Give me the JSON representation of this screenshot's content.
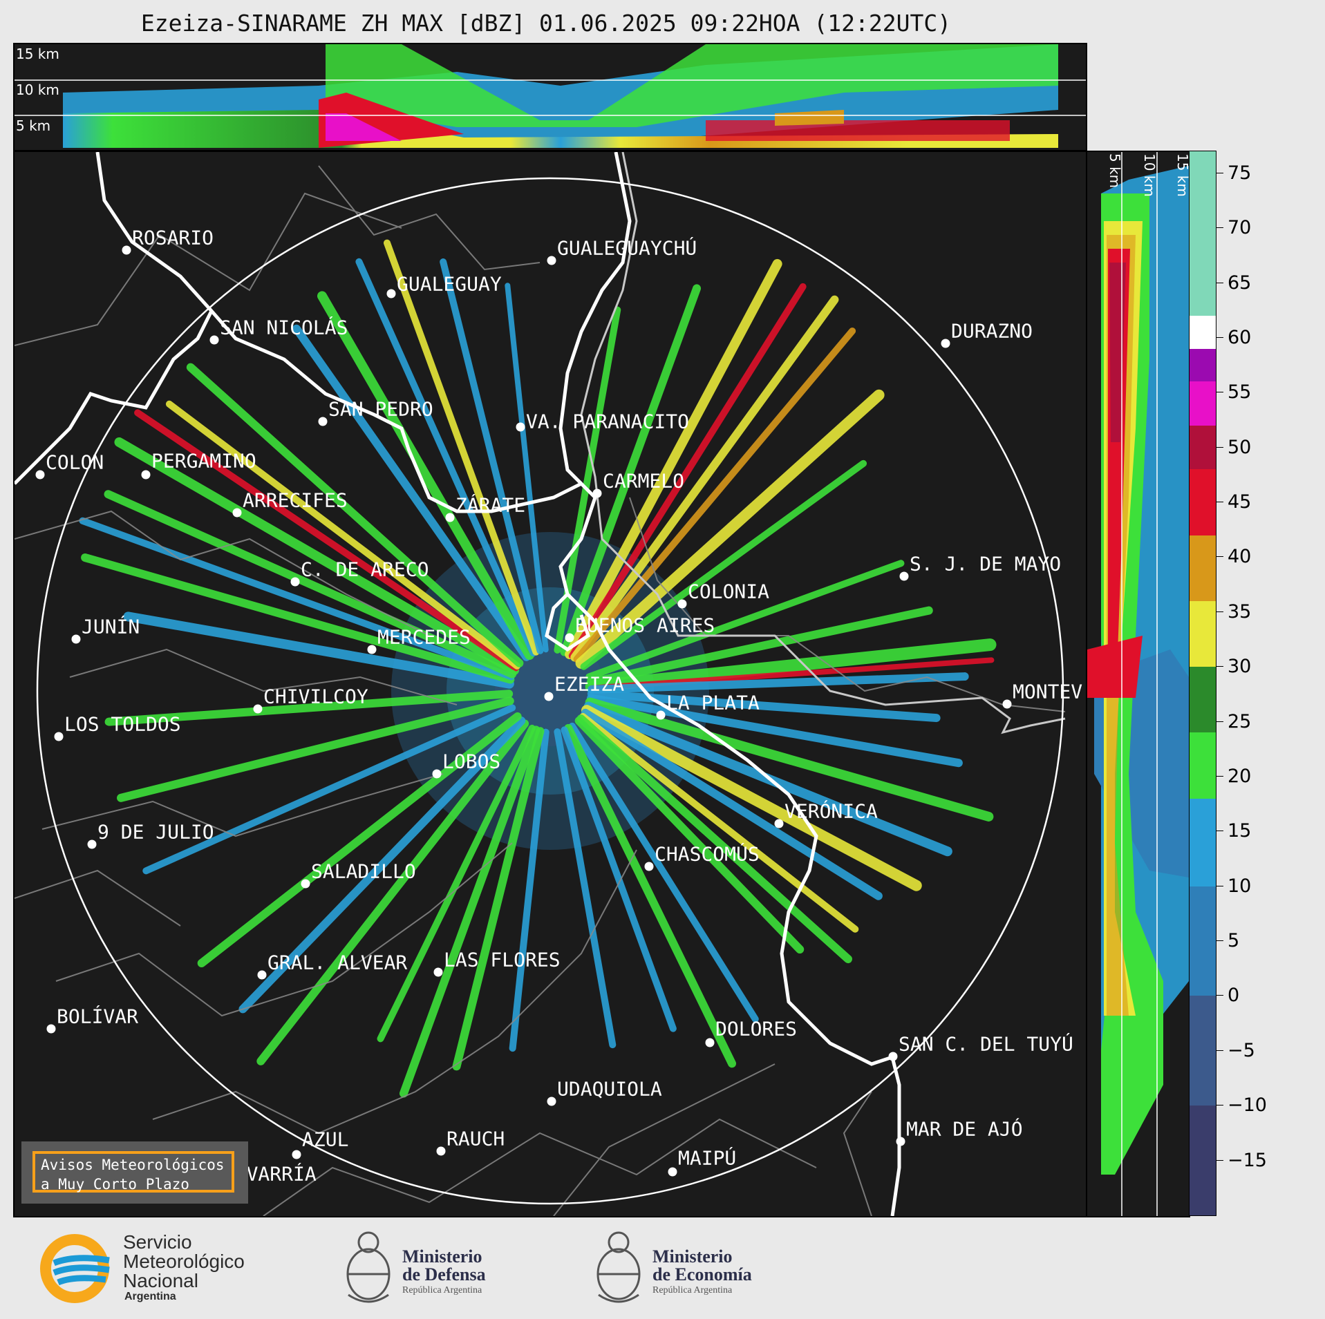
{
  "title": "Ezeiza-SINARAME ZH MAX [dBZ] 01.06.2025 09:22HOA (12:22UTC)",
  "top_panel": {
    "altitude_labels": [
      "15 km",
      "10 km",
      "5 km"
    ]
  },
  "side_panel": {
    "altitude_labels": [
      "5 km",
      "10 km",
      "15 km"
    ]
  },
  "colorbar": {
    "unit": "dBZ",
    "ticks": [
      "75",
      "70",
      "65",
      "60",
      "55",
      "50",
      "45",
      "40",
      "35",
      "30",
      "25",
      "20",
      "15",
      "10",
      "5",
      "0",
      "−5",
      "−10",
      "−15"
    ],
    "range": [
      -20,
      77
    ],
    "stops": [
      {
        "from": -20,
        "to": -10,
        "color": "#3a3d6b"
      },
      {
        "from": -10,
        "to": 0,
        "color": "#3c5a8c"
      },
      {
        "from": 0,
        "to": 10,
        "color": "#2f7fb8"
      },
      {
        "from": 10,
        "to": 18,
        "color": "#2aa0d8"
      },
      {
        "from": 18,
        "to": 24,
        "color": "#3de03a"
      },
      {
        "from": 24,
        "to": 30,
        "color": "#2b8a2b"
      },
      {
        "from": 30,
        "to": 36,
        "color": "#e8e83a"
      },
      {
        "from": 36,
        "to": 42,
        "color": "#d8981a"
      },
      {
        "from": 42,
        "to": 48,
        "color": "#e0102a"
      },
      {
        "from": 48,
        "to": 52,
        "color": "#b0103a"
      },
      {
        "from": 52,
        "to": 56,
        "color": "#e810c8"
      },
      {
        "from": 56,
        "to": 59,
        "color": "#9b0ab0"
      },
      {
        "from": 59,
        "to": 62,
        "color": "#ffffff"
      },
      {
        "from": 62,
        "to": 77,
        "color": "#80d8b8"
      }
    ]
  },
  "radar": {
    "name": "EZEIZA"
  },
  "cities": [
    {
      "name": "ROSARIO"
    },
    {
      "name": "GUALEGUAYCHÚ"
    },
    {
      "name": "GUALEGUAY"
    },
    {
      "name": "SAN NICOLÁS"
    },
    {
      "name": "DURAZNO"
    },
    {
      "name": "SAN PEDRO"
    },
    {
      "name": "VA. PARANACITO"
    },
    {
      "name": "COLON"
    },
    {
      "name": "PERGAMINO"
    },
    {
      "name": "CARMELO"
    },
    {
      "name": "ARRECIFES"
    },
    {
      "name": "ZÁRATE"
    },
    {
      "name": "S. J. DE MAYO"
    },
    {
      "name": "C. DE ARECO"
    },
    {
      "name": "COLONIA"
    },
    {
      "name": "JUNÍN"
    },
    {
      "name": "BUENOS AIRES"
    },
    {
      "name": "MERCEDES"
    },
    {
      "name": "EZEIZA"
    },
    {
      "name": "MONTEV"
    },
    {
      "name": "CHIVILCOY"
    },
    {
      "name": "LA PLATA"
    },
    {
      "name": "LOS TOLDOS"
    },
    {
      "name": "LOBOS"
    },
    {
      "name": "VERÓNICA"
    },
    {
      "name": "9 DE JULIO"
    },
    {
      "name": "CHASCOMÚS"
    },
    {
      "name": "SALADILLO"
    },
    {
      "name": "GRAL. ALVEAR"
    },
    {
      "name": "LAS FLORES"
    },
    {
      "name": "BOLÍVAR"
    },
    {
      "name": "DOLORES"
    },
    {
      "name": "SAN C. DEL TUYÚ"
    },
    {
      "name": "UDAQUIOLA"
    },
    {
      "name": "AZUL"
    },
    {
      "name": "RAUCH"
    },
    {
      "name": "MAR DE AJÓ"
    },
    {
      "name": "MAIPÚ"
    },
    {
      "name": "OLAVARRÍA"
    }
  ],
  "warning_box": {
    "line1": "Avisos Meteorológicos",
    "line2": "a Muy Corto Plazo"
  },
  "logos": {
    "smn": {
      "line1": "Servicio",
      "line2": "Meteorológico",
      "line3": "Nacional",
      "line4": "Argentina"
    },
    "defensa": {
      "line1": "Ministerio",
      "line2": "de Defensa",
      "line3": "República Argentina"
    },
    "economia": {
      "line1": "Ministerio",
      "line2": "de Economía",
      "line3": "República Argentina"
    }
  }
}
